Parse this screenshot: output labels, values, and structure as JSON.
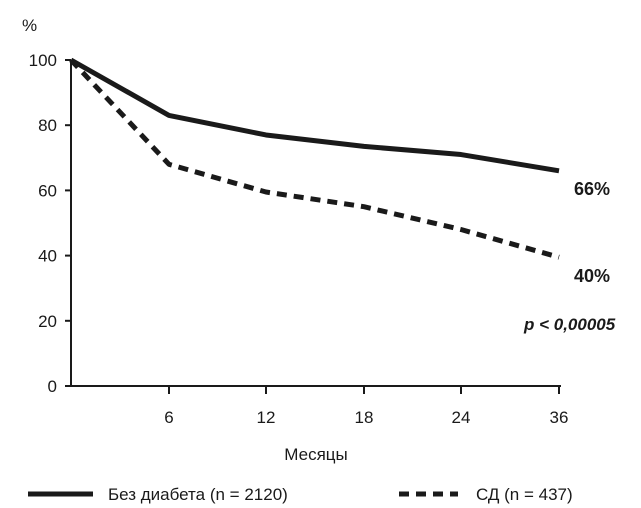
{
  "chart_data": {
    "type": "line",
    "x": [
      "0",
      "6",
      "12",
      "18",
      "24",
      "36"
    ],
    "xticks": [
      "6",
      "12",
      "18",
      "24",
      "36"
    ],
    "yticks": [
      "0",
      "20",
      "40",
      "60",
      "80",
      "100"
    ],
    "ylim": [
      0,
      100
    ],
    "ylabel": "%",
    "xlabel": "Месяцы",
    "grid": false,
    "series": [
      {
        "name": "Без диабета (n = 2120)",
        "style": "solid",
        "values": [
          100,
          83,
          77,
          73.5,
          71,
          66
        ],
        "end_label": "66%"
      },
      {
        "name": "СД (n = 437)",
        "style": "dashed",
        "values": [
          100,
          68,
          59.5,
          55,
          48,
          39.5
        ],
        "end_label": "40%"
      }
    ],
    "annotation": "p < 0,00005",
    "legend_position": "bottom",
    "line_color": "#1a1a1a"
  }
}
